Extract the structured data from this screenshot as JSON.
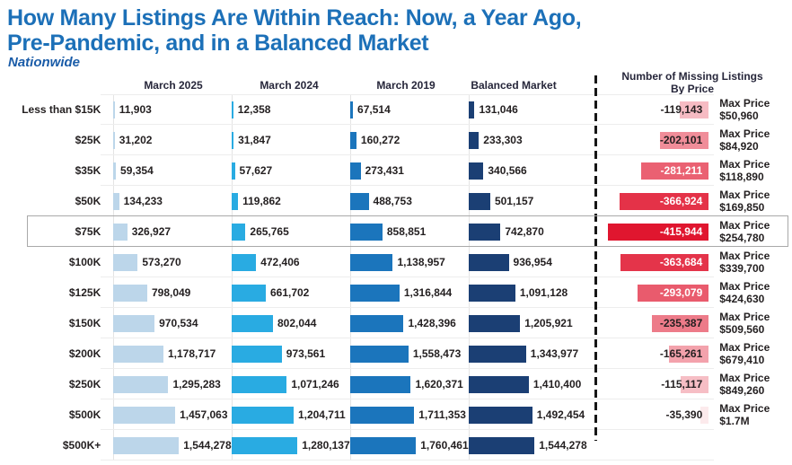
{
  "title_line1": "How Many Listings Are Within Reach: Now, a Year Ago,",
  "title_line2": "Pre-Pandemic, and in a Balanced Market",
  "subtitle": "Nationwide",
  "right_header_line1": "Number of Missing Listings",
  "right_header_line2": "By Price",
  "max_price_label": "Max Price",
  "highlight_row": 4,
  "colors": {
    "title": "#1c70b8",
    "subtitle": "#1a5ca8",
    "text": "#231f20",
    "missing_red_rgb": "224,22,47",
    "highlight_border": "#a9a9a9"
  },
  "chart_data": {
    "type": "bar",
    "orientation": "horizontal",
    "title": "How Many Listings Are Within Reach: Now, a Year Ago, Pre-Pandemic, and in a Balanced Market",
    "subtitle": "Nationwide",
    "scaling_note": "each blue column scaled to its own max; red column scaled to max missing value; red opacity proportional to magnitude",
    "grid": false,
    "categories": [
      "Less than $15K",
      "$25K",
      "$35K",
      "$50K",
      "$75K",
      "$100K",
      "$125K",
      "$150K",
      "$200K",
      "$250K",
      "$500K",
      "$500K+"
    ],
    "series": [
      {
        "name": "March 2025",
        "color": "#bcd6ea",
        "values": [
          11903,
          31202,
          59354,
          134233,
          326927,
          573270,
          798049,
          970534,
          1178717,
          1295283,
          1457063,
          1544278
        ]
      },
      {
        "name": "March 2024",
        "color": "#29abe2",
        "values": [
          12358,
          31847,
          57627,
          119862,
          265765,
          472406,
          661702,
          802044,
          973561,
          1071246,
          1204711,
          1280137
        ]
      },
      {
        "name": "March 2019",
        "color": "#1b75bc",
        "values": [
          67514,
          160272,
          273431,
          488753,
          858851,
          1138957,
          1316844,
          1428396,
          1558473,
          1620371,
          1711353,
          1760461
        ]
      },
      {
        "name": "Balanced Market",
        "color": "#1b3f74",
        "values": [
          131046,
          233303,
          340566,
          501157,
          742870,
          936954,
          1091128,
          1205921,
          1343977,
          1410400,
          1492454,
          1544278
        ]
      }
    ],
    "missing_listings": {
      "name": "Number of Missing Listings By Price",
      "color": "#e0162f",
      "values": [
        -119143,
        -202101,
        -281211,
        -366924,
        -415944,
        -363684,
        -293079,
        -235387,
        -165261,
        -115117,
        -35390,
        null
      ]
    },
    "max_prices": [
      "$50,960",
      "$84,920",
      "$118,890",
      "$169,850",
      "$254,780",
      "$339,700",
      "$424,630",
      "$509,560",
      "$679,410",
      "$849,260",
      "$1.7M",
      null
    ]
  }
}
